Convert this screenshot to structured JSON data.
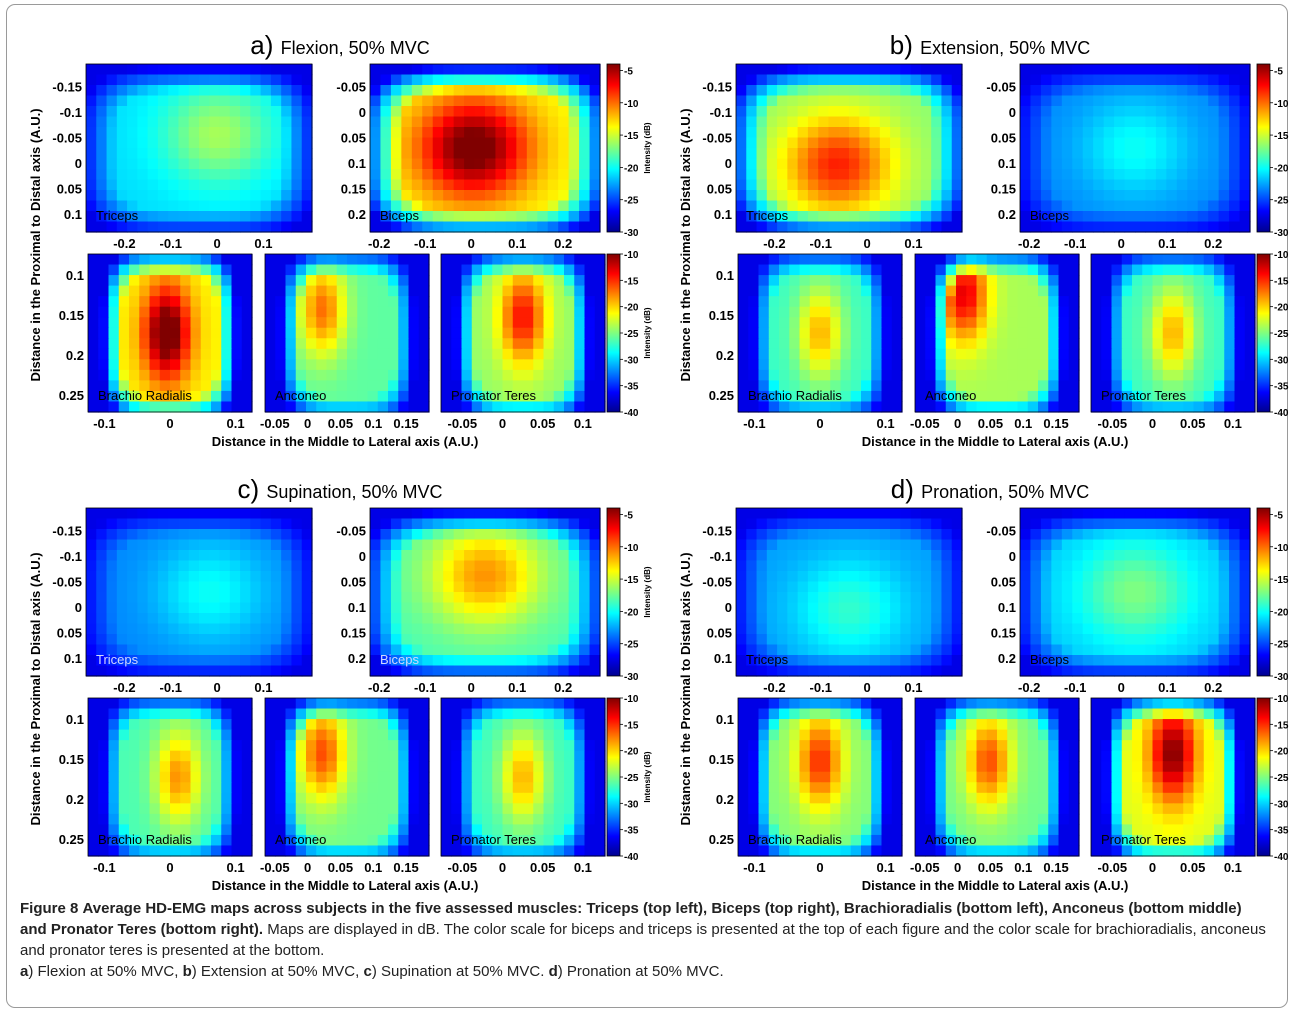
{
  "chart_data": [
    {
      "panel": "a",
      "type": "heatmap",
      "title_letter": "a)",
      "title": "Flexion, 50% MVC",
      "ylabel": "Distance in the Proximal to Distal axis (A.U.)",
      "xlabel": "Distance in the Middle to Lateral axis (A.U.)",
      "maps": [
        {
          "muscle": "Triceps",
          "peak_db": -16,
          "hot_x": 0.58,
          "hot_y": 0.42,
          "x_ticks": [
            "-0.2",
            "-0.1",
            "0",
            "0.1"
          ],
          "y_ticks": [
            "-0.15",
            "-0.1",
            "-0.05",
            "0",
            "0.05",
            "0.1"
          ]
        },
        {
          "muscle": "Biceps",
          "peak_db": -3,
          "hot_x": 0.45,
          "hot_y": 0.5,
          "x_ticks": [
            "-0.2",
            "-0.1",
            "0",
            "0.1",
            "0.2"
          ],
          "y_ticks": [
            "-0.05",
            "0",
            "0.05",
            "0.1",
            "0.15",
            "0.2"
          ]
        },
        {
          "muscle": "Brachio Radialis",
          "peak_db": -8,
          "hot_x": 0.48,
          "hot_y": 0.5,
          "x_ticks": [
            "-0.1",
            "0",
            "0.1"
          ],
          "y_ticks": [
            "0.1",
            "0.15",
            "0.2",
            "0.25"
          ]
        },
        {
          "muscle": "Anconeo",
          "peak_db": -17,
          "hot_x": 0.35,
          "hot_y": 0.35,
          "x_ticks": [
            "-0.05",
            "0",
            "0.05",
            "0.1",
            "0.15"
          ],
          "y_ticks": []
        },
        {
          "muscle": "Pronator Teres",
          "peak_db": -14,
          "hot_x": 0.5,
          "hot_y": 0.4,
          "x_ticks": [
            "-0.05",
            "0",
            "0.05",
            "0.1"
          ],
          "y_ticks": []
        }
      ],
      "colorbar_top": {
        "label": "Intensity (dB)",
        "ticks": [
          "-5",
          "-10",
          "-15",
          "-20",
          "-25",
          "-30"
        ],
        "range": [
          -30,
          -4
        ]
      },
      "colorbar_bottom": {
        "label": "Intensity (dB)",
        "ticks": [
          "-10",
          "-15",
          "-20",
          "-25",
          "-30",
          "-35",
          "-40"
        ],
        "range": [
          -40,
          -10
        ]
      }
    },
    {
      "panel": "b",
      "type": "heatmap",
      "title_letter": "b)",
      "title": "Extension, 50% MVC",
      "ylabel": "Distance in the Proximal to Distal axis (A.U.)",
      "xlabel": "Distance in the Middle to Lateral axis (A.U.)",
      "maps": [
        {
          "muscle": "Triceps",
          "peak_db": -8,
          "hot_x": 0.45,
          "hot_y": 0.6,
          "x_ticks": [
            "-0.2",
            "-0.1",
            "0",
            "0.1"
          ],
          "y_ticks": [
            "-0.15",
            "-0.1",
            "-0.05",
            "0",
            "0.05",
            "0.1"
          ]
        },
        {
          "muscle": "Biceps",
          "peak_db": -20,
          "hot_x": 0.5,
          "hot_y": 0.5,
          "x_ticks": [
            "-0.2",
            "-0.1",
            "0",
            "0.1",
            "0.2"
          ],
          "y_ticks": [
            "-0.05",
            "0",
            "0.05",
            "0.1",
            "0.15",
            "0.2"
          ]
        },
        {
          "muscle": "Brachio Radialis",
          "peak_db": -19,
          "hot_x": 0.5,
          "hot_y": 0.5,
          "x_ticks": [
            "-0.1",
            "0",
            "0.1"
          ],
          "y_ticks": [
            "0.1",
            "0.15",
            "0.2",
            "0.25"
          ]
        },
        {
          "muscle": "Anconeo",
          "peak_db": -13,
          "hot_x": 0.3,
          "hot_y": 0.25,
          "x_ticks": [
            "-0.05",
            "0",
            "0.05",
            "0.1",
            "0.15"
          ],
          "y_ticks": []
        },
        {
          "muscle": "Pronator Teres",
          "peak_db": -19,
          "hot_x": 0.5,
          "hot_y": 0.5,
          "x_ticks": [
            "-0.05",
            "0",
            "0.05",
            "0.1"
          ],
          "y_ticks": []
        }
      ],
      "colorbar_top": {
        "label": "Intensity (dB)",
        "ticks": [
          "-5",
          "-10",
          "-15",
          "-20",
          "-25",
          "-30"
        ],
        "range": [
          -30,
          -4
        ]
      },
      "colorbar_bottom": {
        "label": "Intensity (dB)",
        "ticks": [
          "-10",
          "-15",
          "-20",
          "-25",
          "-30",
          "-35",
          "-40"
        ],
        "range": [
          -40,
          -10
        ]
      }
    },
    {
      "panel": "c",
      "type": "heatmap",
      "title_letter": "c)",
      "title": "Supination, 50% MVC",
      "ylabel": "Distance in the Proximal to Distal axis (A.U.)",
      "xlabel": "Distance in the Middle to Lateral axis (A.U.)",
      "maps": [
        {
          "muscle": "Triceps",
          "peak_db": -20,
          "hot_x": 0.55,
          "hot_y": 0.5,
          "x_ticks": [
            "-0.2",
            "-0.1",
            "0",
            "0.1"
          ],
          "y_ticks": [
            "-0.15",
            "-0.1",
            "-0.05",
            "0",
            "0.05",
            "0.1"
          ]
        },
        {
          "muscle": "Biceps",
          "peak_db": -11,
          "hot_x": 0.5,
          "hot_y": 0.4,
          "x_ticks": [
            "-0.2",
            "-0.1",
            "0",
            "0.1",
            "0.2"
          ],
          "y_ticks": [
            "-0.05",
            "0",
            "0.05",
            "0.1",
            "0.15",
            "0.2"
          ]
        },
        {
          "muscle": "Brachio Radialis",
          "peak_db": -18,
          "hot_x": 0.55,
          "hot_y": 0.5,
          "x_ticks": [
            "-0.1",
            "0",
            "0.1"
          ],
          "y_ticks": [
            "0.1",
            "0.15",
            "0.2",
            "0.25"
          ]
        },
        {
          "muscle": "Anconeo",
          "peak_db": -16,
          "hot_x": 0.35,
          "hot_y": 0.35,
          "x_ticks": [
            "-0.05",
            "0",
            "0.05",
            "0.1",
            "0.15"
          ],
          "y_ticks": []
        },
        {
          "muscle": "Pronator Teres",
          "peak_db": -19,
          "hot_x": 0.5,
          "hot_y": 0.5,
          "x_ticks": [
            "-0.05",
            "0",
            "0.05",
            "0.1"
          ],
          "y_ticks": []
        }
      ],
      "colorbar_top": {
        "label": "Intensity (dB)",
        "ticks": [
          "-5",
          "-10",
          "-15",
          "-20",
          "-25",
          "-30"
        ],
        "range": [
          -30,
          -4
        ]
      },
      "colorbar_bottom": {
        "label": "Intensity (dB)",
        "ticks": [
          "-10",
          "-15",
          "-20",
          "-25",
          "-30",
          "-35",
          "-40"
        ],
        "range": [
          -40,
          -10
        ]
      }
    },
    {
      "panel": "d",
      "type": "heatmap",
      "title_letter": "d)",
      "title": "Pronation, 50% MVC",
      "ylabel": "Distance in the Proximal to Distal axis (A.U.)",
      "xlabel": "Distance in the Middle to Lateral axis (A.U.)",
      "maps": [
        {
          "muscle": "Triceps",
          "peak_db": -19,
          "hot_x": 0.5,
          "hot_y": 0.6,
          "x_ticks": [
            "-0.2",
            "-0.1",
            "0",
            "0.1"
          ],
          "y_ticks": [
            "-0.15",
            "-0.1",
            "-0.05",
            "0",
            "0.05",
            "0.1"
          ]
        },
        {
          "muscle": "Biceps",
          "peak_db": -17,
          "hot_x": 0.5,
          "hot_y": 0.5,
          "x_ticks": [
            "-0.2",
            "-0.1",
            "0",
            "0.1",
            "0.2"
          ],
          "y_ticks": [
            "-0.05",
            "0",
            "0.05",
            "0.1",
            "0.15",
            "0.2"
          ]
        },
        {
          "muscle": "Brachio Radialis",
          "peak_db": -15,
          "hot_x": 0.5,
          "hot_y": 0.4,
          "x_ticks": [
            "-0.1",
            "0",
            "0.1"
          ],
          "y_ticks": [
            "0.1",
            "0.15",
            "0.2",
            "0.25"
          ]
        },
        {
          "muscle": "Anconeo",
          "peak_db": -16,
          "hot_x": 0.45,
          "hot_y": 0.4,
          "x_ticks": [
            "-0.05",
            "0",
            "0.05",
            "0.1",
            "0.15"
          ],
          "y_ticks": []
        },
        {
          "muscle": "Pronator Teres",
          "peak_db": -10,
          "hot_x": 0.5,
          "hot_y": 0.35,
          "x_ticks": [
            "-0.05",
            "0",
            "0.05",
            "0.1"
          ],
          "y_ticks": []
        }
      ],
      "colorbar_top": {
        "label": "Intensity (dB)",
        "ticks": [
          "-5",
          "-10",
          "-15",
          "-20",
          "-25",
          "-30"
        ],
        "range": [
          -30,
          -4
        ]
      },
      "colorbar_bottom": {
        "label": "Intensity (dB)",
        "ticks": [
          "-10",
          "-15",
          "-20",
          "-25",
          "-30",
          "-35",
          "-40"
        ],
        "range": [
          -40,
          -10
        ]
      }
    }
  ],
  "caption": {
    "label": "Figure 8",
    "bold_text": "Average HD-EMG maps across subjects in the five assessed muscles: Triceps (top left), Biceps (top right), Brachioradialis (bottom left), Anconeus (bottom middle) and Pronator Teres (bottom right).",
    "text": "Maps are displayed in dB. The color scale for biceps and triceps is presented at the top of each figure and the color scale for brachioradialis, anconeus and pronator teres is presented at the bottom.",
    "items": [
      {
        "letter": "a",
        "text": ") Flexion at 50% MVC, "
      },
      {
        "letter": "b",
        "text": ") Extension at 50% MVC, "
      },
      {
        "letter": "c",
        "text": ") Supination at 50% MVC. "
      },
      {
        "letter": "d",
        "text": ") Pronation at 50% MVC."
      }
    ]
  }
}
